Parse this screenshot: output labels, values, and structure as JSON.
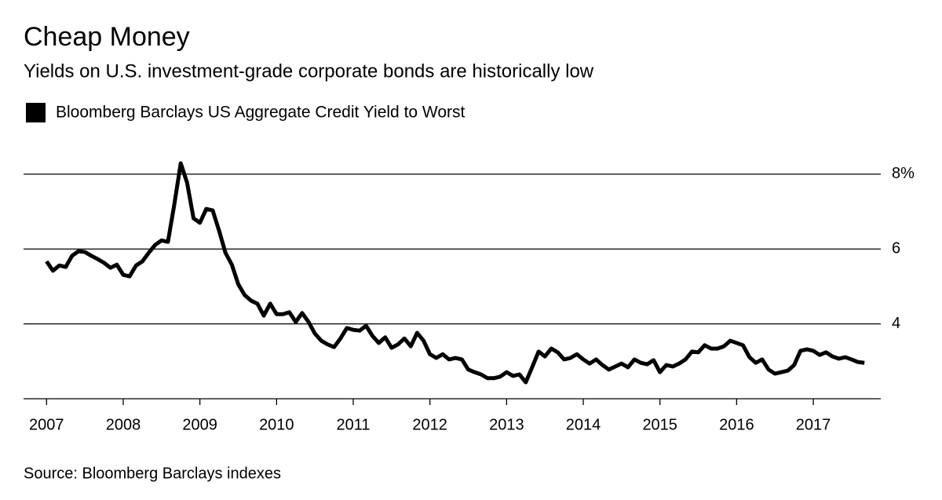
{
  "chart_data": {
    "type": "line",
    "title": "Cheap Money",
    "subtitle": "Yields on U.S. investment-grade corporate bonds are historically low",
    "source": "Source: Bloomberg Barclays indexes",
    "x": [
      2007,
      2007.083,
      2007.167,
      2007.25,
      2007.333,
      2007.417,
      2007.5,
      2007.583,
      2007.667,
      2007.75,
      2007.833,
      2007.917,
      2008,
      2008.083,
      2008.167,
      2008.25,
      2008.333,
      2008.417,
      2008.5,
      2008.583,
      2008.667,
      2008.75,
      2008.833,
      2008.917,
      2009,
      2009.083,
      2009.167,
      2009.25,
      2009.333,
      2009.417,
      2009.5,
      2009.583,
      2009.667,
      2009.75,
      2009.833,
      2009.917,
      2010,
      2010.083,
      2010.167,
      2010.25,
      2010.333,
      2010.417,
      2010.5,
      2010.583,
      2010.667,
      2010.75,
      2010.833,
      2010.917,
      2011,
      2011.083,
      2011.167,
      2011.25,
      2011.333,
      2011.417,
      2011.5,
      2011.583,
      2011.667,
      2011.75,
      2011.833,
      2011.917,
      2012,
      2012.083,
      2012.167,
      2012.25,
      2012.333,
      2012.417,
      2012.5,
      2012.583,
      2012.667,
      2012.75,
      2012.833,
      2012.917,
      2013,
      2013.083,
      2013.167,
      2013.25,
      2013.333,
      2013.417,
      2013.5,
      2013.583,
      2013.667,
      2013.75,
      2013.833,
      2013.917,
      2014,
      2014.083,
      2014.167,
      2014.25,
      2014.333,
      2014.417,
      2014.5,
      2014.583,
      2014.667,
      2014.75,
      2014.833,
      2014.917,
      2015,
      2015.083,
      2015.167,
      2015.25,
      2015.333,
      2015.417,
      2015.5,
      2015.583,
      2015.667,
      2015.75,
      2015.833,
      2015.917,
      2016,
      2016.083,
      2016.167,
      2016.25,
      2016.333,
      2016.417,
      2016.5,
      2016.583,
      2016.667,
      2016.75,
      2016.833,
      2016.917,
      2017,
      2017.083,
      2017.167,
      2017.25,
      2017.333,
      2017.417,
      2017.5,
      2017.583,
      2017.667
    ],
    "series": [
      {
        "name": "Bloomberg Barclays US Aggregate Credit Yield to Worst",
        "color": "#000000",
        "values": [
          5.67,
          5.42,
          5.56,
          5.52,
          5.82,
          5.94,
          5.92,
          5.82,
          5.73,
          5.63,
          5.5,
          5.58,
          5.31,
          5.27,
          5.56,
          5.67,
          5.9,
          6.11,
          6.23,
          6.19,
          7.2,
          8.29,
          7.77,
          6.82,
          6.7,
          7.07,
          7.03,
          6.49,
          5.9,
          5.58,
          5.06,
          4.77,
          4.62,
          4.54,
          4.22,
          4.54,
          4.26,
          4.26,
          4.31,
          4.05,
          4.29,
          4.05,
          3.74,
          3.55,
          3.45,
          3.38,
          3.61,
          3.89,
          3.84,
          3.82,
          3.95,
          3.68,
          3.49,
          3.64,
          3.36,
          3.45,
          3.61,
          3.4,
          3.76,
          3.55,
          3.19,
          3.09,
          3.19,
          3.05,
          3.09,
          3.05,
          2.78,
          2.71,
          2.65,
          2.55,
          2.55,
          2.59,
          2.71,
          2.61,
          2.65,
          2.44,
          2.84,
          3.26,
          3.13,
          3.34,
          3.24,
          3.05,
          3.09,
          3.19,
          3.05,
          2.94,
          3.05,
          2.9,
          2.78,
          2.86,
          2.94,
          2.84,
          3.05,
          2.96,
          2.92,
          3.03,
          2.71,
          2.9,
          2.86,
          2.94,
          3.05,
          3.26,
          3.24,
          3.43,
          3.34,
          3.34,
          3.4,
          3.55,
          3.49,
          3.43,
          3.11,
          2.96,
          3.05,
          2.78,
          2.67,
          2.71,
          2.75,
          2.9,
          3.28,
          3.32,
          3.28,
          3.17,
          3.24,
          3.13,
          3.07,
          3.11,
          3.05,
          2.98,
          2.96
        ]
      }
    ],
    "xlim": [
      2006.7,
      2017.88
    ],
    "xticks": [
      2007,
      2008,
      2009,
      2010,
      2011,
      2012,
      2013,
      2014,
      2015,
      2016,
      2017
    ],
    "ylim": [
      2,
      8.5
    ],
    "yticks": [
      4,
      6,
      {
        "value": 8,
        "label": "8%"
      }
    ],
    "grid": true
  }
}
